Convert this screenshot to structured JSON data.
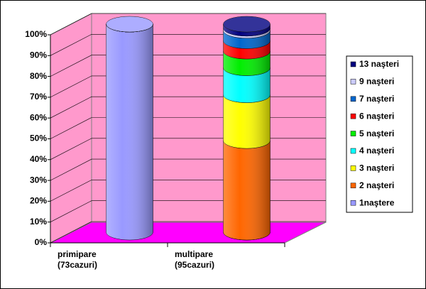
{
  "chart_data": {
    "type": "stacked-cylinder",
    "categories": [
      "primipare\n(73cazuri)",
      "multipare\n(95cazuri)"
    ],
    "series": [
      {
        "name": "1naştere",
        "color": "#9999ff",
        "values": [
          100,
          0
        ]
      },
      {
        "name": "2 naşteri",
        "color": "#ff6600",
        "values": [
          0,
          44
        ]
      },
      {
        "name": "3 naşteri",
        "color": "#ffff00",
        "values": [
          0,
          22
        ]
      },
      {
        "name": "4 naşteri",
        "color": "#00ffff",
        "values": [
          0,
          13
        ]
      },
      {
        "name": "5 naşteri",
        "color": "#00ee00",
        "values": [
          0,
          8
        ]
      },
      {
        "name": "6 naşteri",
        "color": "#ff0000",
        "values": [
          0,
          5
        ]
      },
      {
        "name": "7 naşteri",
        "color": "#0066cc",
        "values": [
          0,
          5
        ]
      },
      {
        "name": "9 naşteri",
        "color": "#ccccff",
        "values": [
          0,
          1
        ]
      },
      {
        "name": "13 naşteri",
        "color": "#000080",
        "values": [
          0,
          2
        ]
      }
    ],
    "ylim": [
      0,
      100
    ],
    "yticks": [
      {
        "value": 0,
        "label": "0%"
      },
      {
        "value": 10,
        "label": "10%"
      },
      {
        "value": 20,
        "label": "20%"
      },
      {
        "value": 30,
        "label": "30%"
      },
      {
        "value": 40,
        "label": "40%"
      },
      {
        "value": 50,
        "label": "50%"
      },
      {
        "value": 60,
        "label": "60%"
      },
      {
        "value": 70,
        "label": "70%"
      },
      {
        "value": 80,
        "label": "80%"
      },
      {
        "value": 90,
        "label": "90%"
      },
      {
        "value": 100,
        "label": "100%"
      }
    ],
    "grid": true,
    "legend": "right"
  }
}
